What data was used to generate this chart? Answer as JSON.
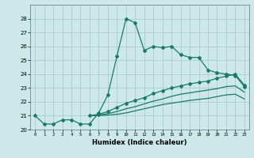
{
  "title": "",
  "xlabel": "Humidex (Indice chaleur)",
  "bg_color": "#cce8e8",
  "grid_color": "#aacccc",
  "line_color": "#1a7a6a",
  "xlim": [
    -0.5,
    23.5
  ],
  "ylim": [
    20,
    29
  ],
  "yticks": [
    20,
    21,
    22,
    23,
    24,
    25,
    26,
    27,
    28
  ],
  "xticks": [
    0,
    1,
    2,
    3,
    4,
    5,
    6,
    7,
    8,
    9,
    10,
    11,
    12,
    13,
    14,
    15,
    16,
    17,
    18,
    19,
    20,
    21,
    22,
    23
  ],
  "series1_x": [
    0,
    1,
    2,
    3,
    4,
    5,
    6,
    7,
    8,
    9,
    10,
    11,
    12,
    13,
    14,
    15,
    16,
    17,
    18,
    19,
    20,
    21,
    22,
    23
  ],
  "series1_y": [
    21.0,
    20.4,
    20.4,
    20.7,
    20.7,
    20.4,
    20.4,
    21.2,
    22.5,
    25.3,
    28.0,
    27.7,
    25.7,
    26.0,
    25.9,
    26.0,
    25.4,
    25.2,
    25.2,
    24.3,
    24.1,
    24.0,
    23.9,
    23.1
  ],
  "series2_x": [
    6,
    7,
    8,
    9,
    10,
    11,
    12,
    13,
    14,
    15,
    16,
    17,
    18,
    19,
    20,
    21,
    22,
    23
  ],
  "series2_y": [
    21.0,
    21.1,
    21.3,
    21.6,
    21.9,
    22.1,
    22.3,
    22.6,
    22.8,
    23.0,
    23.15,
    23.3,
    23.4,
    23.5,
    23.7,
    23.85,
    24.0,
    23.2
  ],
  "series3_x": [
    6,
    7,
    8,
    9,
    10,
    11,
    12,
    13,
    14,
    15,
    16,
    17,
    18,
    19,
    20,
    21,
    22,
    23
  ],
  "series3_y": [
    21.0,
    21.05,
    21.15,
    21.3,
    21.5,
    21.65,
    21.85,
    22.05,
    22.2,
    22.4,
    22.55,
    22.65,
    22.75,
    22.85,
    22.95,
    23.1,
    23.15,
    22.7
  ],
  "series4_x": [
    6,
    7,
    8,
    9,
    10,
    11,
    12,
    13,
    14,
    15,
    16,
    17,
    18,
    19,
    20,
    21,
    22,
    23
  ],
  "series4_y": [
    21.0,
    21.0,
    21.05,
    21.1,
    21.2,
    21.35,
    21.5,
    21.65,
    21.8,
    21.9,
    22.0,
    22.1,
    22.18,
    22.25,
    22.38,
    22.5,
    22.55,
    22.2
  ]
}
